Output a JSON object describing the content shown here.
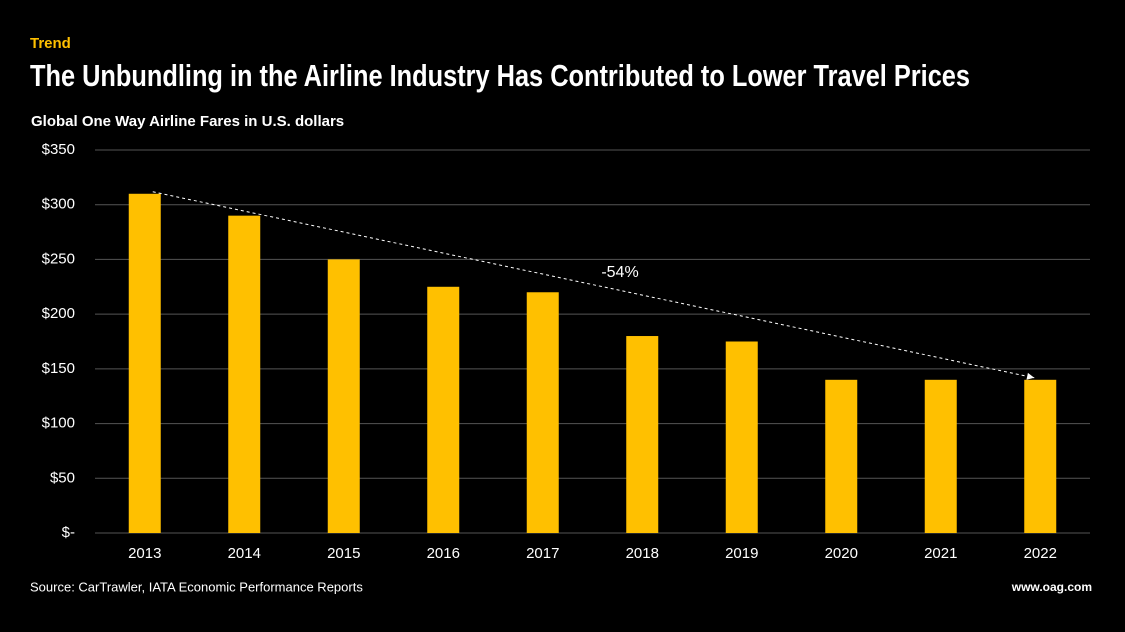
{
  "chart_data": {
    "type": "bar",
    "kicker": "Trend",
    "title": "The Unbundling in the Airline Industry Has Contributed to Lower Travel Prices",
    "subtitle": "Global One Way Airline Fares in U.S. dollars",
    "categories": [
      "2013",
      "2014",
      "2015",
      "2016",
      "2017",
      "2018",
      "2019",
      "2020",
      "2021",
      "2022"
    ],
    "values": [
      310,
      290,
      250,
      225,
      220,
      180,
      175,
      140,
      140,
      140
    ],
    "color": "#ffc000",
    "ylim": [
      0,
      350
    ],
    "yticks": [
      {
        "value": 0,
        "label": "$-"
      },
      {
        "value": 50,
        "label": "$50"
      },
      {
        "value": 100,
        "label": "$100"
      },
      {
        "value": 150,
        "label": "$150"
      },
      {
        "value": 200,
        "label": "$200"
      },
      {
        "value": 250,
        "label": "$250"
      },
      {
        "value": 300,
        "label": "$300"
      },
      {
        "value": 350,
        "label": "$350"
      }
    ],
    "grid": true,
    "annotation": "-54%",
    "source": "Source: CarTrawler, IATA Economic Performance Reports",
    "website": "www.oag.com"
  }
}
